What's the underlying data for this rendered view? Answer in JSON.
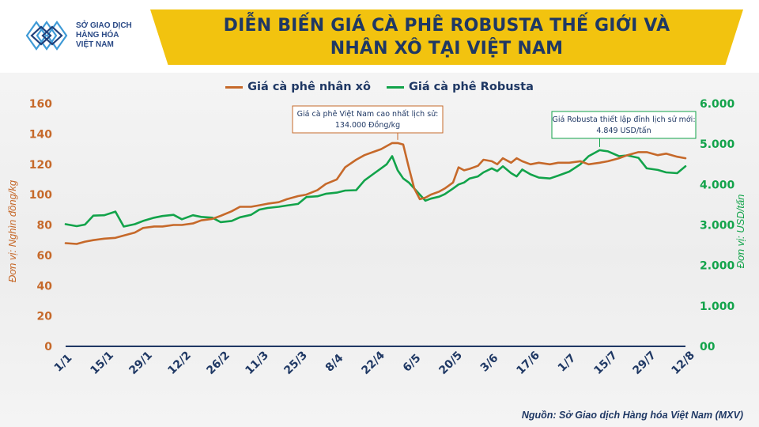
{
  "header": {
    "title_line1": "DIỄN BIẾN GIÁ CÀ PHÊ ROBUSTA THẾ GIỚI VÀ",
    "title_line2": "NHÂN XÔ TẠI VIỆT NAM"
  },
  "logo": {
    "line1": "SỞ GIAO DỊCH",
    "line2": "HÀNG HÓA",
    "line3": "VIỆT NAM"
  },
  "source": "Nguồn: Sở Giao dịch Hàng hóa Việt Nam (MXV)",
  "colors": {
    "brand_yellow": "#f2c30f",
    "title_navy": "#1f3864",
    "series_orange": "#c6692a",
    "series_green": "#12a34a"
  },
  "chart_data": {
    "type": "line",
    "title": "DIỄN BIẾN GIÁ CÀ PHÊ ROBUSTA THẾ GIỚI VÀ NHÂN XÔ TẠI VIỆT NAM",
    "legend_position": "top-center",
    "grid": false,
    "x_ticks": [
      "1/1",
      "15/1",
      "29/1",
      "12/2",
      "26/2",
      "11/3",
      "25/3",
      "8/4",
      "22/4",
      "6/5",
      "20/5",
      "3/6",
      "17/6",
      "1/7",
      "15/7",
      "29/7",
      "12/8"
    ],
    "y_left": {
      "label": "Đơn vị: Nghìn đồng/kg",
      "range": [
        0,
        160
      ],
      "ticks": [
        "0",
        "20",
        "40",
        "60",
        "80",
        "100",
        "120",
        "140",
        "160"
      ]
    },
    "y_right": {
      "label": "Đơn vị: USD/tấn",
      "range": [
        0,
        6000
      ],
      "ticks": [
        "00",
        "1.000",
        "2.000",
        "3.000",
        "4.000",
        "5.000",
        "6.000"
      ]
    },
    "series": [
      {
        "name": "Giá cà phê nhân xô",
        "axis": "left",
        "x_day": [
          0,
          4,
          7,
          10,
          14,
          18,
          21,
          25,
          28,
          32,
          35,
          39,
          42,
          46,
          49,
          53,
          56,
          60,
          63,
          67,
          70,
          73,
          77,
          80,
          84,
          87,
          91,
          94,
          98,
          101,
          105,
          108,
          111,
          114,
          116,
          118,
          120,
          122,
          124,
          126,
          128,
          130,
          132,
          135,
          137,
          140,
          142,
          144,
          146,
          149,
          151,
          154,
          156,
          158,
          161,
          163,
          165,
          168,
          171,
          175,
          178,
          182,
          186,
          189,
          193,
          196,
          200,
          203,
          207,
          210,
          214,
          217,
          221,
          224
        ],
        "values": [
          68,
          67.5,
          69,
          70,
          71,
          71.5,
          73,
          75,
          78,
          79,
          79,
          80,
          80,
          81,
          83,
          84,
          86,
          89,
          92,
          92,
          93,
          94,
          95,
          97,
          99,
          100,
          103,
          107,
          110,
          118,
          123,
          126,
          128,
          130,
          132,
          134,
          134,
          133,
          118,
          104,
          97,
          98,
          100,
          102,
          104,
          108,
          118,
          116,
          117,
          119,
          123,
          122,
          120,
          124,
          121,
          124,
          122,
          120,
          121,
          120,
          121,
          121,
          122,
          120,
          121,
          122,
          124,
          126,
          128,
          128,
          126,
          127,
          125,
          124
        ]
      },
      {
        "name": "Giá cà phê Robusta",
        "axis": "right",
        "x_day": [
          0,
          4,
          7,
          10,
          14,
          18,
          21,
          25,
          28,
          32,
          35,
          39,
          42,
          46,
          49,
          53,
          56,
          60,
          63,
          67,
          70,
          73,
          77,
          80,
          84,
          87,
          91,
          94,
          98,
          101,
          105,
          108,
          111,
          114,
          116,
          118,
          120,
          122,
          124,
          126,
          128,
          130,
          132,
          135,
          137,
          140,
          142,
          144,
          146,
          149,
          151,
          154,
          156,
          158,
          161,
          163,
          165,
          168,
          171,
          175,
          178,
          182,
          186,
          189,
          193,
          196,
          200,
          203,
          207,
          210,
          214,
          217,
          221,
          224
        ],
        "values": [
          3020,
          2970,
          3010,
          3230,
          3240,
          3330,
          2960,
          3020,
          3100,
          3180,
          3220,
          3250,
          3140,
          3240,
          3200,
          3180,
          3070,
          3100,
          3190,
          3250,
          3380,
          3420,
          3450,
          3480,
          3520,
          3690,
          3710,
          3770,
          3800,
          3850,
          3860,
          4100,
          4250,
          4400,
          4500,
          4700,
          4350,
          4150,
          4050,
          3900,
          3750,
          3600,
          3650,
          3700,
          3760,
          3900,
          4000,
          4050,
          4150,
          4200,
          4300,
          4400,
          4330,
          4450,
          4280,
          4200,
          4370,
          4250,
          4170,
          4150,
          4220,
          4320,
          4500,
          4700,
          4849,
          4820,
          4700,
          4720,
          4660,
          4400,
          4360,
          4300,
          4280,
          4450
        ]
      }
    ],
    "annotations": [
      {
        "text_line1": "Giá cà phê Việt Nam cao nhất lịch sử:",
        "text_line2": "134.000 Đồng/kg",
        "series": "Giá cà phê nhân xô",
        "x_day": 120,
        "value": 134
      },
      {
        "text_line1": "Giá Robusta thiết lập đỉnh lịch sử mới:",
        "text_line2": "4.849 USD/tấn",
        "series": "Giá cà phê Robusta",
        "x_day": 193,
        "value": 4849
      }
    ]
  }
}
